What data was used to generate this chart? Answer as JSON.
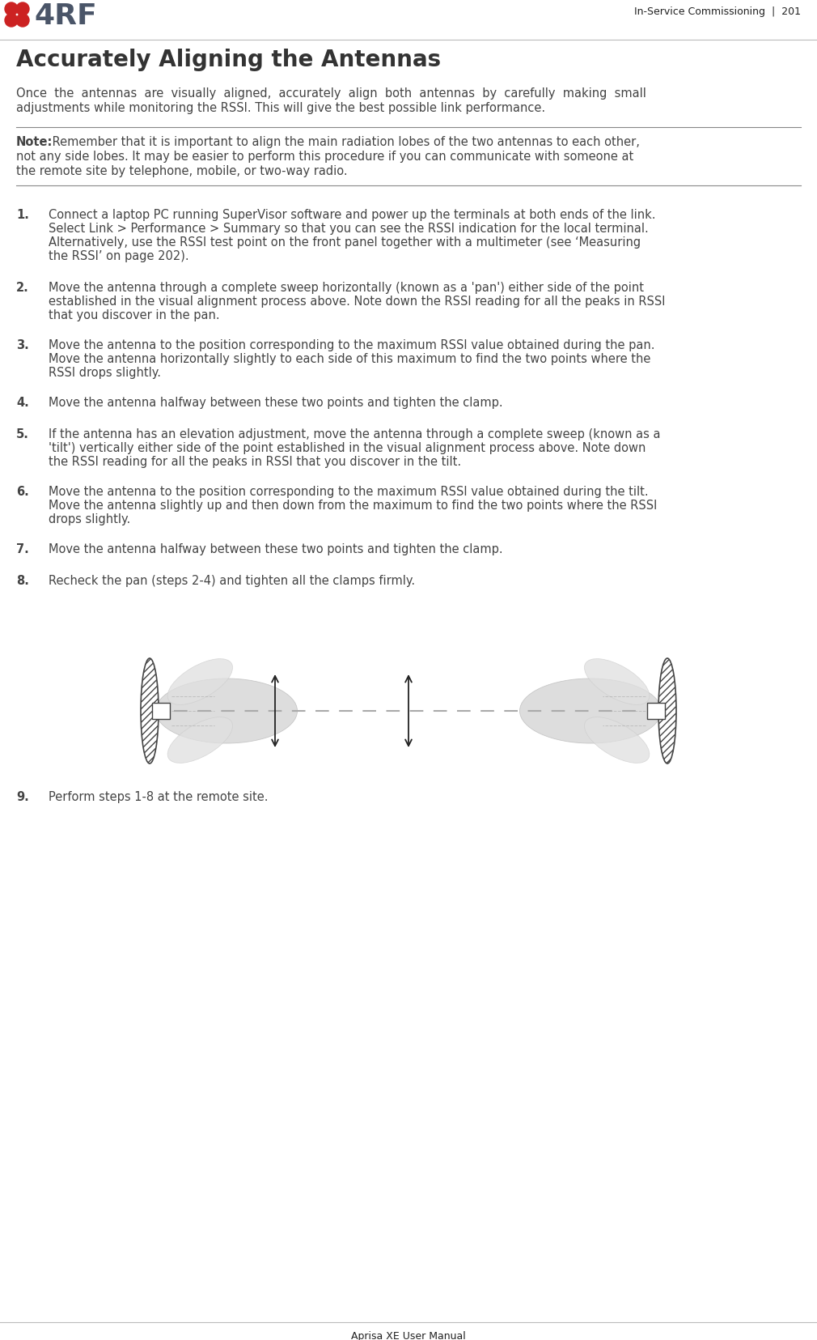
{
  "page_header_right": "In-Service Commissioning  |  201",
  "page_footer": "Aprisa XE User Manual",
  "title": "Accurately Aligning the Antennas",
  "intro_line1": "Once  the  antennas  are  visually  aligned,  accurately  align  both  antennas  by  carefully  making  small",
  "intro_line2": "adjustments while monitoring the RSSI. This will give the best possible link performance.",
  "note_label": "Note:",
  "note_line1": " Remember that it is important to align the main radiation lobes of the two antennas to each other,",
  "note_line2": "not any side lobes. It may be easier to perform this procedure if you can communicate with someone at",
  "note_line3": "the remote site by telephone, mobile, or two-way radio.",
  "steps": [
    {
      "num": "1.",
      "lines": [
        "Connect a laptop PC running SuperVisor software and power up the terminals at both ends of the link.",
        "Select Link > Performance > Summary so that you can see the RSSI indication for the local terminal.",
        "Alternatively, use the RSSI test point on the front panel together with a multimeter (see ‘Measuring",
        "the RSSI’ on page 202)."
      ]
    },
    {
      "num": "2.",
      "lines": [
        "Move the antenna through a complete sweep horizontally (known as a 'pan') either side of the point",
        "established in the visual alignment process above. Note down the RSSI reading for all the peaks in RSSI",
        "that you discover in the pan."
      ]
    },
    {
      "num": "3.",
      "lines": [
        "Move the antenna to the position corresponding to the maximum RSSI value obtained during the pan.",
        "Move the antenna horizontally slightly to each side of this maximum to find the two points where the",
        "RSSI drops slightly."
      ]
    },
    {
      "num": "4.",
      "lines": [
        "Move the antenna halfway between these two points and tighten the clamp."
      ]
    },
    {
      "num": "5.",
      "lines": [
        "If the antenna has an elevation adjustment, move the antenna through a complete sweep (known as a",
        "'tilt') vertically either side of the point established in the visual alignment process above. Note down",
        "the RSSI reading for all the peaks in RSSI that you discover in the tilt."
      ]
    },
    {
      "num": "6.",
      "lines": [
        "Move the antenna to the position corresponding to the maximum RSSI value obtained during the tilt.",
        "Move the antenna slightly up and then down from the maximum to find the two points where the RSSI",
        "drops slightly."
      ]
    },
    {
      "num": "7.",
      "lines": [
        "Move the antenna halfway between these two points and tighten the clamp."
      ]
    },
    {
      "num": "8.",
      "lines": [
        "Recheck the pan (steps 2-4) and tighten all the clamps firmly."
      ]
    },
    {
      "num": "9.",
      "lines": [
        "Perform steps 1-8 at the remote site."
      ]
    }
  ],
  "bg_color": "#ffffff",
  "text_color": "#444444",
  "header_color": "#222222",
  "title_color": "#333333",
  "note_line_color": "#888888",
  "body_font_size": 10.5,
  "step_font_size": 10.5,
  "title_font_size": 20,
  "header_font_size": 9.0,
  "logo_text_color": "#4a5568",
  "logo_dot_color": "#cc2222"
}
